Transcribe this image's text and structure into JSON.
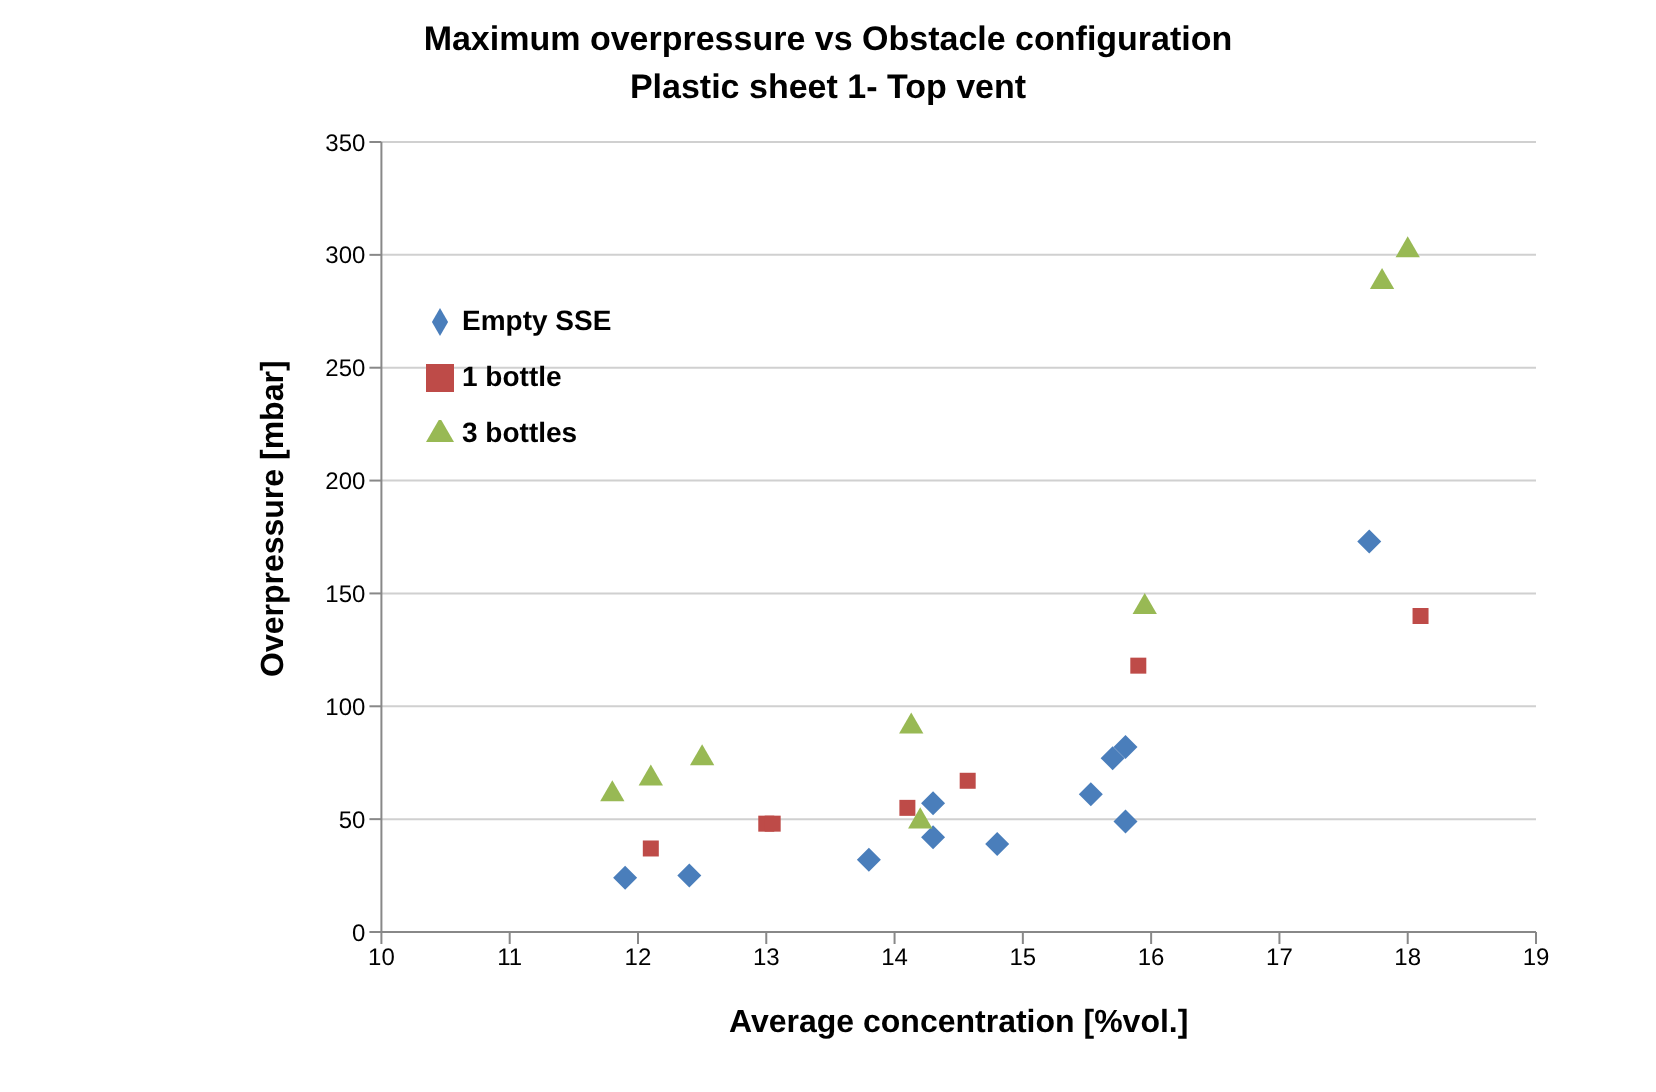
{
  "chart_data": {
    "type": "scatter",
    "title": "Maximum overpressure vs Obstacle configuration",
    "subtitle": "Plastic sheet 1- Top vent",
    "xlabel": "Average concentration [%vol.]",
    "ylabel": "Overpressure [mbar]",
    "xlim": [
      10,
      19
    ],
    "xticks": [
      10,
      11,
      12,
      13,
      14,
      15,
      16,
      17,
      18,
      19
    ],
    "ylim": [
      0,
      350
    ],
    "yticks": [
      0,
      50,
      100,
      150,
      200,
      250,
      300,
      350
    ],
    "grid": "y",
    "legend": "top left",
    "series": [
      {
        "name": "Empty SSE",
        "color": "#4a7ebb",
        "marker": "diamond",
        "x": [
          11.9,
          12.4,
          13.8,
          14.3,
          14.3,
          14.8,
          15.53,
          15.7,
          15.8,
          15.8,
          17.7
        ],
        "values": [
          24,
          25,
          32,
          57,
          42,
          39,
          61,
          77,
          82,
          49,
          173
        ]
      },
      {
        "name": "1 bottle",
        "color": "#be4b48",
        "marker": "square",
        "x": [
          12.1,
          13.0,
          13.05,
          14.1,
          14.57,
          15.9,
          18.1
        ],
        "values": [
          37,
          48,
          48,
          55,
          67,
          118,
          140
        ]
      },
      {
        "name": "3 bottles",
        "color": "#98b954",
        "marker": "triangle",
        "x": [
          11.8,
          12.1,
          12.5,
          14.13,
          14.2,
          15.95,
          17.8,
          18.0
        ],
        "values": [
          61,
          68,
          77,
          91,
          49,
          144,
          288,
          302
        ]
      }
    ]
  }
}
